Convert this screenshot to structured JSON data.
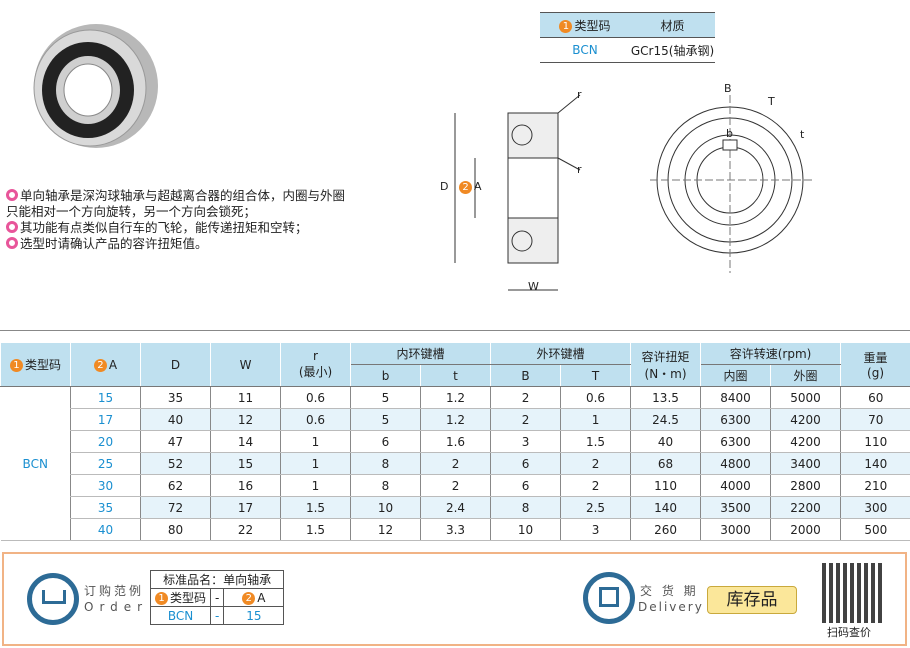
{
  "spec_table": {
    "headers": [
      "类型码",
      "材质"
    ],
    "header_num": "1",
    "row": [
      "BCN",
      "GCr15(轴承钢)"
    ]
  },
  "description": [
    "单向轴承是深沟球轴承与超越离合器的组合体，内圈与外圈只能相对一个方向旋转，另一个方向会锁死；",
    "其功能有点类似自行车的飞轮，能传递扭矩和空转；",
    "选型时请确认产品的容许扭矩值。"
  ],
  "drawing_labels": {
    "D": "D",
    "A": "A",
    "A_num": "2",
    "W": "W",
    "r1": "r",
    "r2": "r",
    "B": "B",
    "T": "T",
    "b": "b",
    "t": "t"
  },
  "table": {
    "headers": {
      "type": "类型码",
      "type_num": "1",
      "A": "A",
      "A_num": "2",
      "D": "D",
      "W": "W",
      "r": "r",
      "r_sub": "(最小)",
      "inner_key": "内环键槽",
      "outer_key": "外环键槽",
      "b": "b",
      "t": "t",
      "B": "B",
      "T": "T",
      "torque": "容许扭矩",
      "torque_unit": "(N・m)",
      "speed": "容许转速(rpm)",
      "speed_inner": "内圈",
      "speed_outer": "外圈",
      "weight": "重量",
      "weight_unit": "(g)"
    },
    "type_code": "BCN",
    "rows": [
      [
        "15",
        "35",
        "11",
        "0.6",
        "5",
        "1.2",
        "2",
        "0.6",
        "13.5",
        "8400",
        "5000",
        "60"
      ],
      [
        "17",
        "40",
        "12",
        "0.6",
        "5",
        "1.2",
        "2",
        "1",
        "24.5",
        "6300",
        "4200",
        "70"
      ],
      [
        "20",
        "47",
        "14",
        "1",
        "6",
        "1.6",
        "3",
        "1.5",
        "40",
        "6300",
        "4200",
        "110"
      ],
      [
        "25",
        "52",
        "15",
        "1",
        "8",
        "2",
        "6",
        "2",
        "68",
        "4800",
        "3400",
        "140"
      ],
      [
        "30",
        "62",
        "16",
        "1",
        "8",
        "2",
        "6",
        "2",
        "110",
        "4000",
        "2800",
        "210"
      ],
      [
        "35",
        "72",
        "17",
        "1.5",
        "10",
        "2.4",
        "8",
        "2.5",
        "140",
        "3500",
        "2200",
        "300"
      ],
      [
        "40",
        "80",
        "22",
        "1.5",
        "12",
        "3.3",
        "10",
        "3",
        "260",
        "3000",
        "2000",
        "500"
      ]
    ]
  },
  "order": {
    "title": "订购范例",
    "title_en": "Order",
    "std_name": "标准品名：单向轴承",
    "col1": "类型码",
    "col1_num": "1",
    "sep": "-",
    "col2": "A",
    "col2_num": "2",
    "val1": "BCN",
    "val2": "15"
  },
  "delivery": {
    "title": "交 货 期",
    "title_en": "Delivery",
    "badge": "库存品"
  },
  "qr": {
    "label": "扫码查价"
  },
  "colors": {
    "header_bg": "#bfe0ef",
    "accent_blue": "#1a8fd0",
    "orange": "#f08a24",
    "pink": "#e8559a"
  }
}
